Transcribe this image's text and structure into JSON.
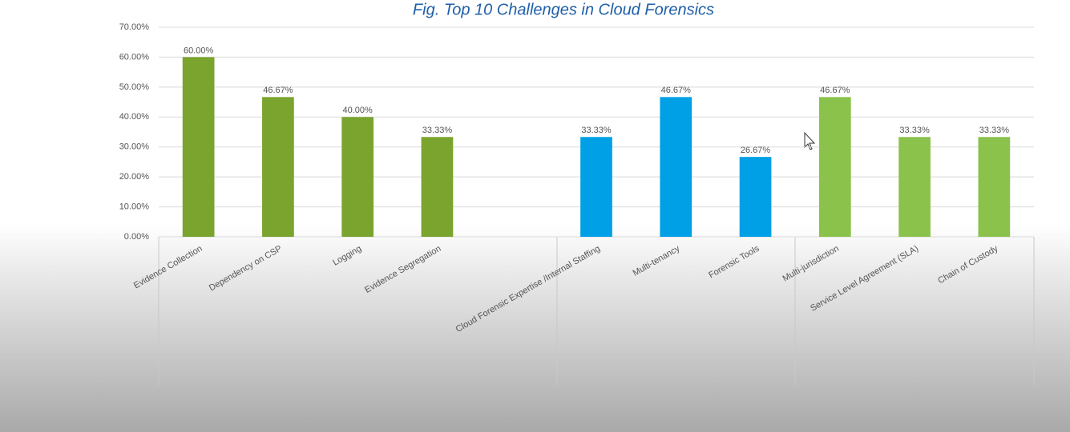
{
  "chart_data": {
    "type": "bar",
    "title": "Fig. Top 10 Challenges in Cloud Forensics",
    "categories": [
      "Evidence Collection",
      "Dependency on CSP",
      "Logging",
      "Evidence Segregation",
      null,
      "Cloud Forensic Expertise /Internal Staffing",
      "Multi-tenancy",
      "Forensic Tools",
      "Multi-jurisdiction",
      "Service Level Agreement (SLA)",
      "Chain of Custody"
    ],
    "values": [
      60,
      46.67,
      40,
      33.33,
      null,
      33.33,
      46.67,
      26.67,
      46.67,
      33.33,
      33.33
    ],
    "value_labels": [
      "60.00%",
      "46.67%",
      "40.00%",
      "33.33%",
      null,
      "33.33%",
      "46.67%",
      "26.67%",
      "46.67%",
      "33.33%",
      "33.33%"
    ],
    "colors": [
      "#7aa42e",
      "#7aa42e",
      "#7aa42e",
      "#7aa42e",
      null,
      "#00a0e6",
      "#00a0e6",
      "#00a0e6",
      "#8bc24c",
      "#8bc24c",
      "#8bc24c"
    ],
    "ylim": [
      0,
      70
    ],
    "yticks": [
      {
        "value": 0,
        "label": "0.00%"
      },
      {
        "value": 10,
        "label": "10.00%"
      },
      {
        "value": 20,
        "label": "20.00%"
      },
      {
        "value": 30,
        "label": "30.00%"
      },
      {
        "value": 40,
        "label": "40.00%"
      },
      {
        "value": 50,
        "label": "50.00%"
      },
      {
        "value": 60,
        "label": "60.00%"
      },
      {
        "value": 70,
        "label": "70.00%"
      }
    ],
    "grid": true
  }
}
